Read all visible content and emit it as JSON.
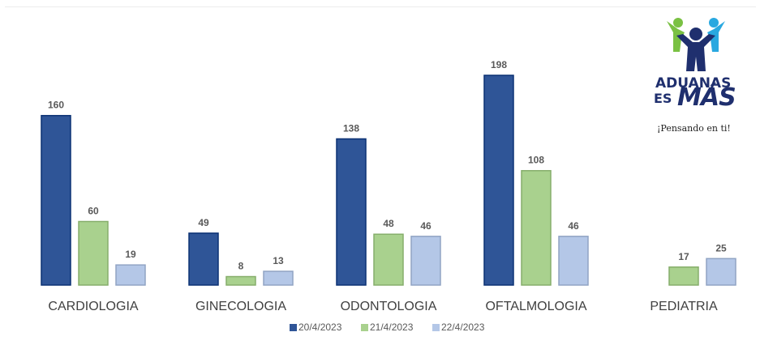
{
  "chart_data": {
    "type": "bar",
    "categories": [
      "CARDIOLOGIA",
      "GINECOLOGIA",
      "ODONTOLOGIA",
      "OFTALMOLOGIA",
      "PEDIATRIA"
    ],
    "series": [
      {
        "name": "20/4/2023",
        "values": [
          160,
          49,
          138,
          198,
          null
        ],
        "color": "#2f5597"
      },
      {
        "name": "21/4/2023",
        "values": [
          60,
          8,
          48,
          108,
          17
        ],
        "color": "#a9d18e"
      },
      {
        "name": "22/4/2023",
        "values": [
          19,
          13,
          46,
          46,
          25
        ],
        "color": "#b4c7e7"
      }
    ],
    "ylim": [
      0,
      200
    ],
    "grid": false,
    "legend_position": "bottom",
    "data_labels": true
  },
  "logo": {
    "line1": "ADUANAS",
    "line2": "ES",
    "line3": "MÁS",
    "tagline": "¡Pensando en ti!",
    "colors": {
      "navy": "#1f2f6e",
      "green": "#7ac143",
      "blue": "#29a8e0"
    }
  }
}
